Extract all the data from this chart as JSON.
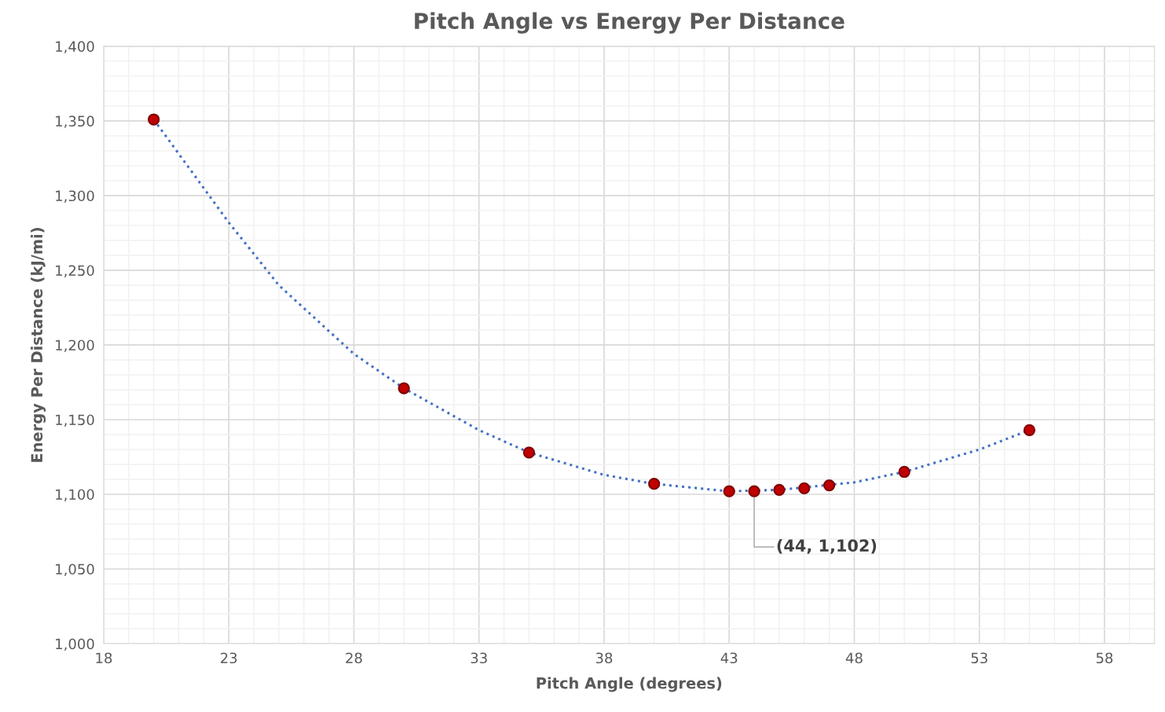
{
  "chart_data": {
    "type": "scatter",
    "title": "Pitch Angle vs Energy Per Distance",
    "xlabel": "Pitch Angle (degrees)",
    "ylabel": "Energy Per Distance (kJ/mi)",
    "series": [
      {
        "color": "#c00000",
        "marker": "circle",
        "x": [
          20,
          30,
          35,
          40,
          43,
          44,
          45,
          46,
          47,
          50,
          55
        ],
        "values": [
          1351,
          1171,
          1128,
          1107,
          1102,
          1102,
          1103,
          1104,
          1106,
          1115,
          1143
        ]
      },
      {
        "type": "line",
        "color": "#4472c4",
        "line_style": "dotted",
        "marker": "none",
        "x": [
          20,
          22,
          23,
          25,
          28,
          30,
          33,
          35,
          38,
          40,
          43,
          45,
          48,
          50,
          53,
          55
        ],
        "values": [
          1351,
          1305,
          1282,
          1240,
          1194,
          1171,
          1143,
          1128,
          1113,
          1107,
          1102,
          1103,
          1108,
          1115,
          1130,
          1143
        ]
      }
    ],
    "annotations": [
      {
        "text": "(44, 1,102)",
        "x": 44,
        "y": 1102
      }
    ],
    "xlim": [
      18,
      60
    ],
    "xticks": [
      18,
      23,
      28,
      33,
      38,
      43,
      48,
      53,
      58
    ],
    "ylim": [
      1000,
      1400
    ],
    "yticks": [
      {
        "value": 1000,
        "label": "1,000"
      },
      {
        "value": 1050,
        "label": "1,050"
      },
      {
        "value": 1100,
        "label": "1,100"
      },
      {
        "value": 1150,
        "label": "1,150"
      },
      {
        "value": 1200,
        "label": "1,200"
      },
      {
        "value": 1250,
        "label": "1,250"
      },
      {
        "value": 1300,
        "label": "1,300"
      },
      {
        "value": 1350,
        "label": "1,350"
      },
      {
        "value": 1400,
        "label": "1,400"
      }
    ],
    "grid": true,
    "legend": false
  }
}
